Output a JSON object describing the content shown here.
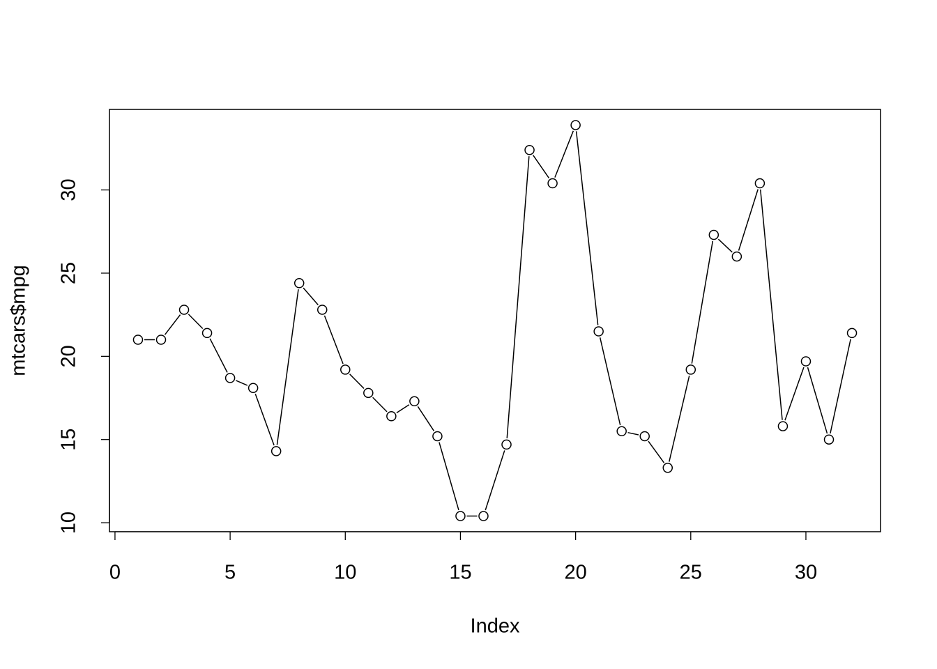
{
  "chart_data": {
    "type": "line",
    "x_label": "Index",
    "y_label": "mtcars$mpg",
    "x": [
      1,
      2,
      3,
      4,
      5,
      6,
      7,
      8,
      9,
      10,
      11,
      12,
      13,
      14,
      15,
      16,
      17,
      18,
      19,
      20,
      21,
      22,
      23,
      24,
      25,
      26,
      27,
      28,
      29,
      30,
      31,
      32
    ],
    "series": [
      {
        "color": "#000000",
        "values": [
          21.0,
          21.0,
          22.8,
          21.4,
          18.7,
          18.1,
          14.3,
          24.4,
          22.8,
          19.2,
          17.8,
          16.4,
          17.3,
          15.2,
          10.4,
          10.4,
          14.7,
          32.4,
          30.4,
          33.9,
          21.5,
          15.5,
          15.2,
          13.3,
          19.2,
          27.3,
          26.0,
          30.4,
          15.8,
          19.7,
          15.0,
          21.4
        ]
      }
    ],
    "xlim": [
      -0.24,
      33.24
    ],
    "ylim": [
      9.46,
      34.84
    ],
    "xticks": [
      0,
      5,
      10,
      15,
      20,
      25,
      30
    ],
    "yticks": [
      10,
      15,
      20,
      25,
      30
    ],
    "grid": false
  }
}
